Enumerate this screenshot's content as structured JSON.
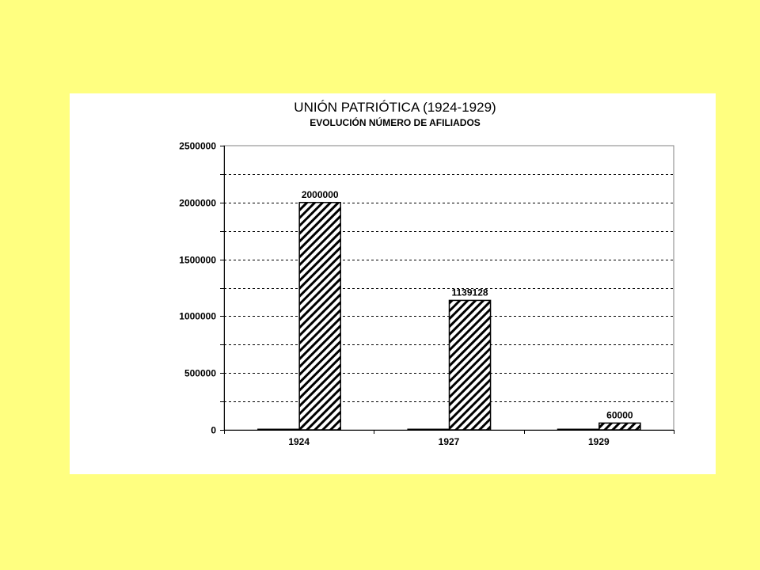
{
  "chart_data": {
    "type": "bar",
    "title": "UNIÓN PATRIÓTICA (1924-1929)",
    "subtitle": "EVOLUCIÓN NÚMERO DE AFILIADOS",
    "categories": [
      "1924",
      "1927",
      "1929"
    ],
    "series": [
      {
        "values": [
          0,
          0,
          0
        ],
        "fill": "solid",
        "color": "#000000"
      },
      {
        "values": [
          2000000,
          1139128,
          60000
        ],
        "fill": "diagonal-hatch",
        "color": "#000000",
        "data_labels": [
          "2000000",
          "1139128",
          "60000"
        ]
      }
    ],
    "ylim": [
      0,
      2500000
    ],
    "yticks": [
      0,
      500000,
      1000000,
      1500000,
      2000000,
      2500000
    ],
    "ytick_labels": [
      "0",
      "500000",
      "1000000",
      "1500000",
      "2000000",
      "2500000"
    ],
    "grid": "dashed-horizontal",
    "legend": "none",
    "background_color": "#ffff80",
    "plot_background": "#ffffff"
  }
}
